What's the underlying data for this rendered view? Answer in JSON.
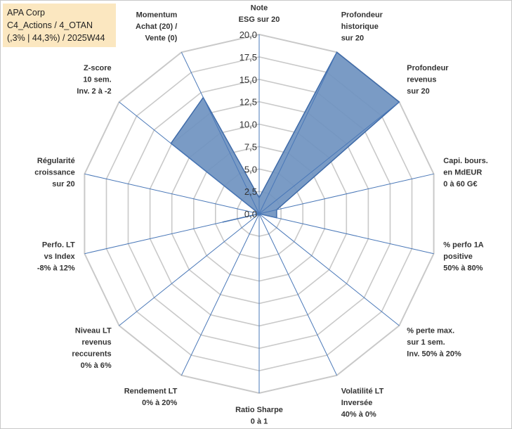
{
  "title_box": {
    "line1": "APA Corp",
    "line2": "C4_Actions / 4_OTAN",
    "line3": "(,3% | 44,3%) / 2025W44"
  },
  "chart_data": {
    "type": "radar",
    "title": "APA Corp",
    "range": [
      0,
      20
    ],
    "tick_labels": [
      "0,0",
      "2,5",
      "5,0",
      "7,5",
      "10,0",
      "12,5",
      "15,0",
      "17,5",
      "20,0"
    ],
    "axes": [
      {
        "label": [
          "Note",
          "ESG sur 20"
        ],
        "value": 1.8
      },
      {
        "label": [
          "Profondeur",
          "historique",
          "sur 20"
        ],
        "value": 20
      },
      {
        "label": [
          "Profondeur",
          "revenus",
          "sur 20"
        ],
        "value": 20
      },
      {
        "label": [
          "Capi. bours.",
          "en MdEUR",
          "0 à 60 G€"
        ],
        "value": 2.0
      },
      {
        "label": [
          "% perfo 1A",
          "positive",
          "50% à 80%"
        ],
        "value": 2.0
      },
      {
        "label": [
          "% perte max.",
          "sur 1 sem.",
          "Inv. 50% à 20%"
        ],
        "value": 0
      },
      {
        "label": [
          "Volatilité LT",
          "Inversée",
          "40% à 0%"
        ],
        "value": 0
      },
      {
        "label": [
          "Ratio Sharpe",
          "0 à 1"
        ],
        "value": 0
      },
      {
        "label": [
          "Rendement LT",
          "0% à 20%"
        ],
        "value": 0
      },
      {
        "label": [
          "Niveau LT",
          "revenus",
          "reccurents",
          "0% à 6%"
        ],
        "value": 0
      },
      {
        "label": [
          "Perfo. LT",
          "vs Index",
          "-8% à 12%"
        ],
        "value": 4.2
      },
      {
        "label": [
          "Régularité",
          "croissance",
          "sur 20"
        ],
        "value": 0
      },
      {
        "label": [
          "Z-score",
          "10 sem.",
          "Inv. 2 à -2"
        ],
        "value": 12.6
      },
      {
        "label": [
          "Momentum",
          "Achat (20) /",
          "Vente (0)"
        ],
        "value": 14.4
      }
    ],
    "colors": {
      "fill": "#6f92c0",
      "stroke": "#3e6aa8",
      "grid": "#c9c9c9",
      "axis": "#4a78b8"
    }
  }
}
